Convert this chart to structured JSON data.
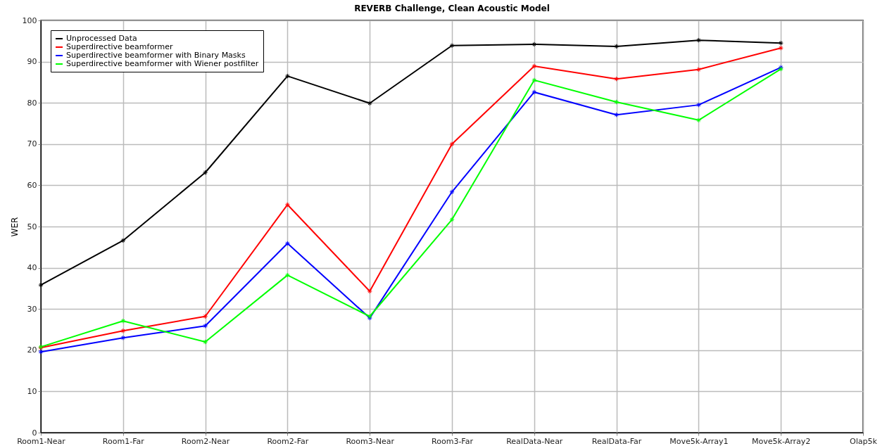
{
  "chart_data": {
    "type": "line",
    "title": "REVERB Challenge, Clean Acoustic Model",
    "ylabel": "WER",
    "categories": [
      "Room1-Near",
      "Room1-Far",
      "Room2-Near",
      "Room2-Far",
      "Room3-Near",
      "Room3-Far",
      "RealData-Near",
      "RealData-Far",
      "Move5k-Array1",
      "Move5k-Array2",
      "Olap5k"
    ],
    "series": [
      {
        "name": "Unprocessed Data",
        "color": "#000000",
        "values": [
          35.8,
          46.6,
          63.1,
          86.5,
          79.9,
          93.9,
          94.2,
          93.7,
          95.2,
          94.5,
          null
        ]
      },
      {
        "name": "Superdirective beamformer",
        "color": "#ff0000",
        "values": [
          20.6,
          24.7,
          28.2,
          55.3,
          34.3,
          70.0,
          88.9,
          85.8,
          88.1,
          93.3,
          null
        ]
      },
      {
        "name": "Superdirective beamformer with Binary Masks",
        "color": "#0000ff",
        "values": [
          19.6,
          23.0,
          25.9,
          45.9,
          27.8,
          58.4,
          82.6,
          77.1,
          79.5,
          88.6,
          null
        ]
      },
      {
        "name": "Superdirective beamformer with Wiener postfilter",
        "color": "#00ff00",
        "values": [
          20.8,
          27.1,
          22.0,
          38.2,
          28.2,
          51.7,
          85.5,
          80.2,
          75.8,
          88.2,
          null
        ]
      }
    ],
    "ylim": [
      0,
      100
    ],
    "yticks": [
      0,
      10,
      20,
      30,
      40,
      50,
      60,
      70,
      80,
      90,
      100
    ],
    "grid": true,
    "legend": "top left",
    "marker": "cross",
    "line_style": "solid"
  }
}
